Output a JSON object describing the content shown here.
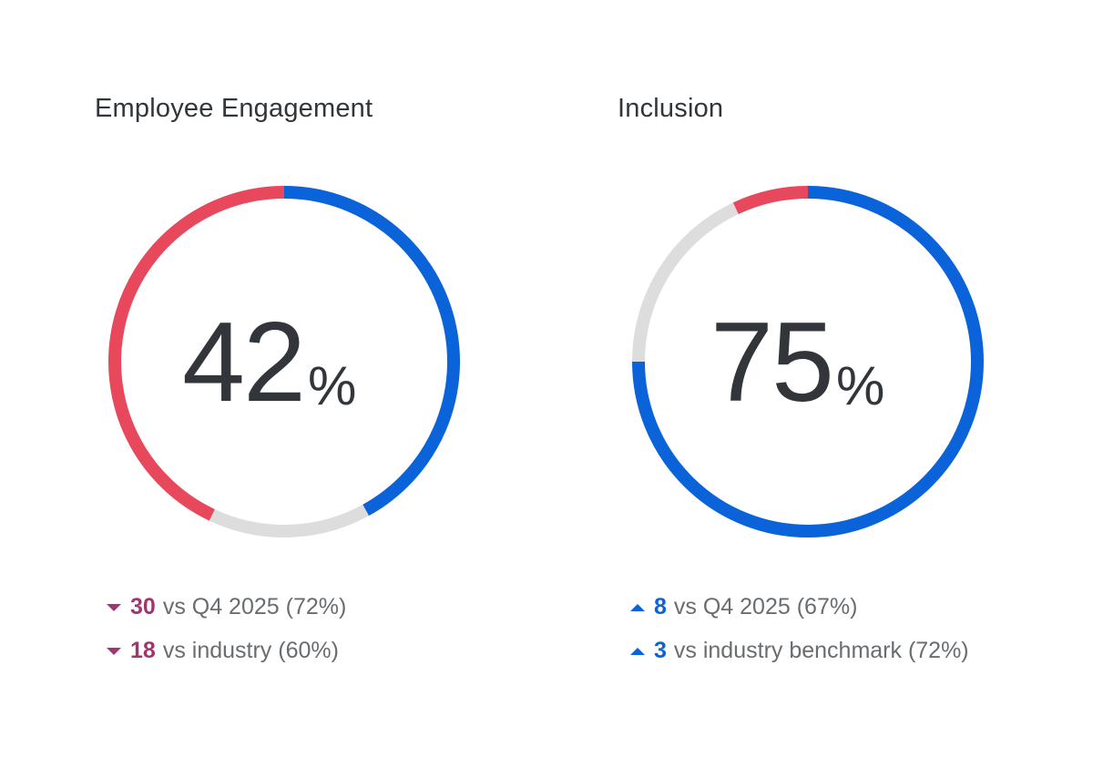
{
  "colors": {
    "favorable": "#0a63d8",
    "unfavorable": "#e8485c",
    "neutral": "#dddddd",
    "down": "#a0366f",
    "up": "#0a63d8",
    "text": "#32363a",
    "muted": "#6a6d70"
  },
  "cards": [
    {
      "title": "Employee Engagement",
      "score": "42",
      "unit": "%",
      "segments": {
        "favorable": 0.42,
        "neutral": 0.15,
        "unfavorable": 0.43
      },
      "comparisons": [
        {
          "direction": "down",
          "value": "30",
          "text": "vs Q4 2025 (72%)"
        },
        {
          "direction": "down",
          "value": "18",
          "text": "vs industry (60%)"
        }
      ]
    },
    {
      "title": "Inclusion",
      "score": "75",
      "unit": "%",
      "segments": {
        "favorable": 0.75,
        "neutral": 0.18,
        "unfavorable": 0.07
      },
      "comparisons": [
        {
          "direction": "up",
          "value": "8",
          "text": "vs Q4 2025 (67%)"
        },
        {
          "direction": "up",
          "value": "3",
          "text": "vs industry benchmark (72%)"
        }
      ]
    }
  ]
}
